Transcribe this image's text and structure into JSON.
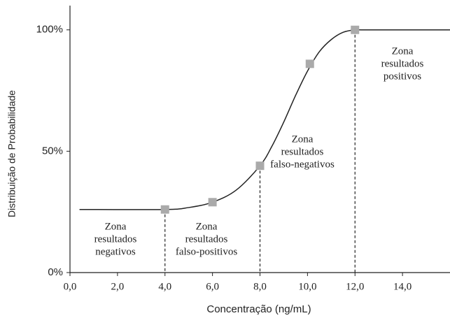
{
  "chart_data": {
    "type": "line",
    "x_label": "Concentração (ng/mL)",
    "y_label": "Distribuição de Probabilidade",
    "xlim": [
      0,
      16
    ],
    "ylim": [
      0,
      110
    ],
    "xticks": [
      {
        "value": 0,
        "label": "0,0"
      },
      {
        "value": 2,
        "label": "2,0"
      },
      {
        "value": 4,
        "label": "4,0"
      },
      {
        "value": 6,
        "label": "6,0"
      },
      {
        "value": 8,
        "label": "8,0"
      },
      {
        "value": 10,
        "label": "10,0"
      },
      {
        "value": 12,
        "label": "12,0"
      },
      {
        "value": 14,
        "label": "14,0"
      }
    ],
    "yticks": [
      {
        "value": 0,
        "label": "0%"
      },
      {
        "value": 50,
        "label": "50%"
      },
      {
        "value": 100,
        "label": "100%"
      }
    ],
    "curve": {
      "color": "#222222",
      "x": [
        0.4,
        4,
        5,
        6,
        7,
        8,
        8.5,
        9,
        9.5,
        10,
        10.5,
        11,
        11.5,
        12,
        12.5,
        16
      ],
      "values": [
        26,
        26,
        26.8,
        29,
        34,
        44,
        52,
        62,
        73,
        83,
        91,
        96,
        99,
        100,
        100,
        100
      ]
    },
    "points": {
      "color": "#aaaaaa",
      "x": [
        4,
        6,
        8,
        10.1,
        12
      ],
      "values": [
        26,
        29,
        44,
        86,
        100
      ]
    },
    "dividers": [
      4,
      8,
      12
    ],
    "zones": [
      {
        "lines": [
          "Zona",
          "resultados",
          "negativos"
        ]
      },
      {
        "lines": [
          "Zona",
          "resultados",
          "falso-positivos"
        ]
      },
      {
        "lines": [
          "Zona",
          "resultados",
          "falso-negativos"
        ]
      },
      {
        "lines": [
          "Zona",
          "resultados",
          "positivos"
        ]
      }
    ]
  }
}
